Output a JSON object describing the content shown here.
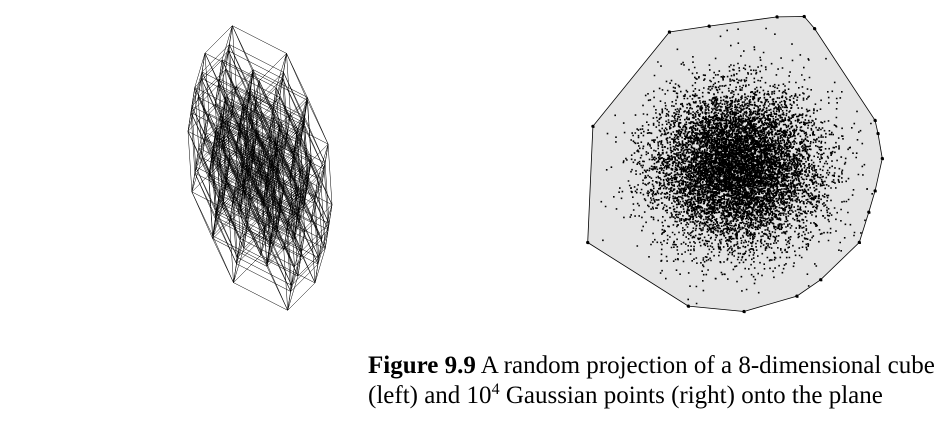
{
  "figure": {
    "left_panel": {
      "subject": "random projection of 8-dimensional cube",
      "edge_color": "#000000"
    },
    "right_panel": {
      "subject": "10^4 Gaussian points",
      "point_color": "#000000",
      "hull_fill": "#e4e4e4",
      "hull_stroke": "#000000"
    }
  },
  "caption": {
    "label": "Figure 9.9",
    "text_part1": " A random projection of a 8-dimensional cube (left) and 10",
    "exponent": "4",
    "text_part2": " Gaussian points (right) onto the plane"
  }
}
